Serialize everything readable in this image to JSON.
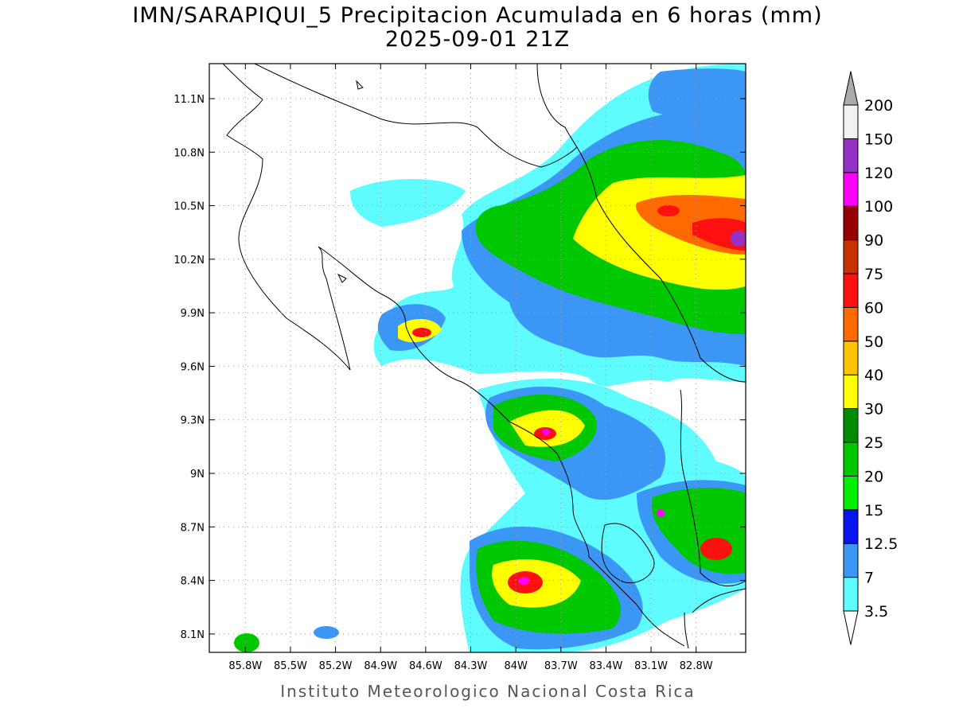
{
  "map": {
    "title": "IMN/SARAPIQUI_5 Precipitacion Acumulada en 6 horas (mm)",
    "subtitle": "2025-09-01 21Z",
    "footer": "Instituto Meteorologico Nacional Costa Rica",
    "xlim": [
      86.04,
      82.47
    ],
    "ylim": [
      7.997,
      11.296
    ],
    "xticks": [
      {
        "value": 85.8,
        "label": "85.8W"
      },
      {
        "value": 85.5,
        "label": "85.5W"
      },
      {
        "value": 85.2,
        "label": "85.2W"
      },
      {
        "value": 84.9,
        "label": "84.9W"
      },
      {
        "value": 84.6,
        "label": "84.6W"
      },
      {
        "value": 84.3,
        "label": "84.3W"
      },
      {
        "value": 84,
        "label": "84W"
      },
      {
        "value": 83.7,
        "label": "83.7W"
      },
      {
        "value": 83.4,
        "label": "83.4W"
      },
      {
        "value": 83.1,
        "label": "83.1W"
      },
      {
        "value": 82.8,
        "label": "82.8W"
      }
    ],
    "yticks": [
      {
        "value": 8.1,
        "label": "8.1N"
      },
      {
        "value": 8.4,
        "label": "8.4N"
      },
      {
        "value": 8.7,
        "label": "8.7N"
      },
      {
        "value": 9,
        "label": "9N"
      },
      {
        "value": 9.3,
        "label": "9.3N"
      },
      {
        "value": 9.6,
        "label": "9.6N"
      },
      {
        "value": 9.9,
        "label": "9.9N"
      },
      {
        "value": 10.2,
        "label": "10.2N"
      },
      {
        "value": 10.5,
        "label": "10.5N"
      },
      {
        "value": 10.8,
        "label": "10.8N"
      },
      {
        "value": 11.1,
        "label": "11.1N"
      }
    ],
    "grid": true,
    "colorbar": {
      "levels": [
        3.5,
        7,
        12.5,
        15,
        20,
        25,
        30,
        40,
        50,
        60,
        75,
        90,
        100,
        120,
        150,
        200
      ],
      "colors": [
        "#5ffcff",
        "#3c96f5",
        "#0a14f0",
        "#00f000",
        "#00c800",
        "#008c00",
        "#ffff00",
        "#ffc400",
        "#ff6a00",
        "#ff1010",
        "#c83200",
        "#960000",
        "#ff00ff",
        "#9632c8",
        "#f2f2f2"
      ],
      "under_color": "#ffffff",
      "over_color": "#aaaaaa"
    }
  }
}
